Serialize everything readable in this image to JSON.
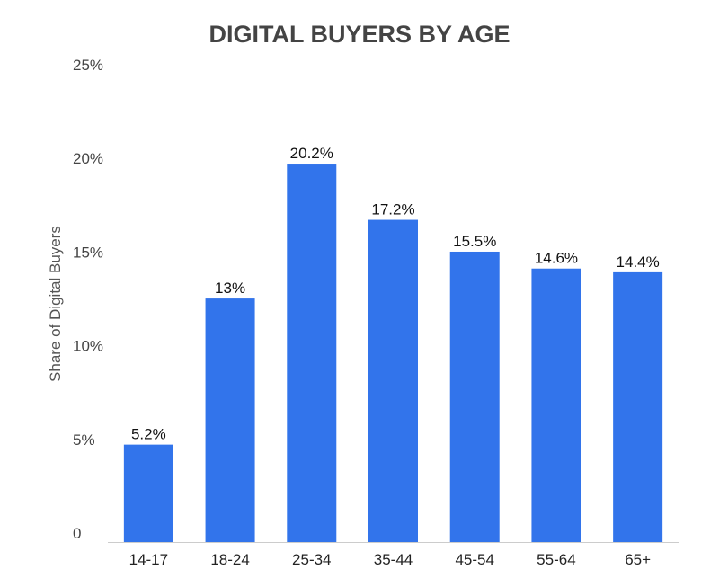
{
  "chart_data": {
    "type": "bar",
    "title": "DIGITAL BUYERS BY AGE",
    "ylabel": "Share of Digital Buyers",
    "xlabel": "",
    "ylim": [
      0,
      25
    ],
    "yticks": [
      {
        "value": 0,
        "label": "0"
      },
      {
        "value": 5,
        "label": "5%"
      },
      {
        "value": 10,
        "label": "10%"
      },
      {
        "value": 15,
        "label": "15%"
      },
      {
        "value": 20,
        "label": "20%"
      },
      {
        "value": 25,
        "label": "25%"
      }
    ],
    "grid": false,
    "bar_color": "#3274eb",
    "categories": [
      "14-17",
      "18-24",
      "25-34",
      "35-44",
      "45-54",
      "55-64",
      "65+"
    ],
    "values": [
      5.2,
      13,
      20.2,
      17.2,
      15.5,
      14.6,
      14.4
    ],
    "data_labels": [
      "5.2%",
      "13%",
      "20.2%",
      "17.2%",
      "15.5%",
      "14.6%",
      "14.4%"
    ]
  }
}
